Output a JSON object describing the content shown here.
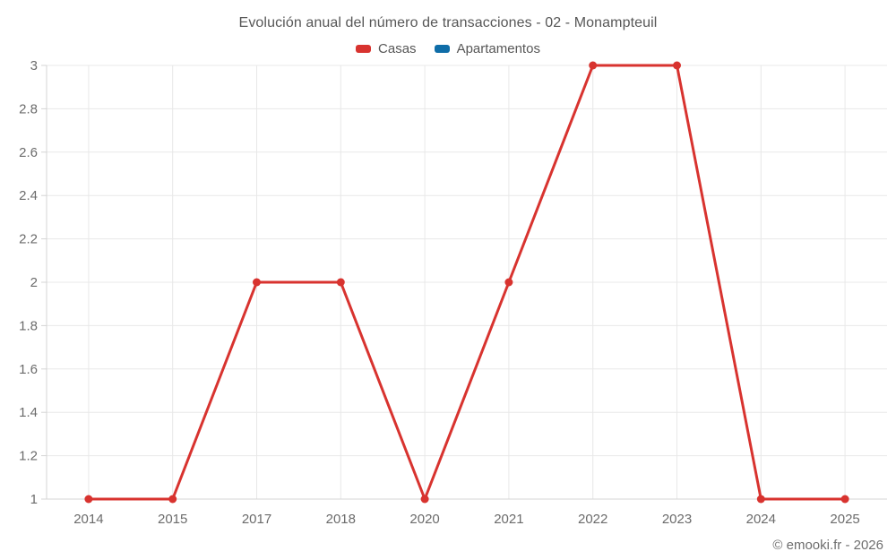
{
  "header": {
    "title": "Evolución anual del número de transacciones - 02 - Monampteuil"
  },
  "legend": {
    "items": [
      {
        "label": "Casas",
        "color": "#d8332f"
      },
      {
        "label": "Apartamentos",
        "color": "#0f6da8"
      }
    ]
  },
  "footer": {
    "copyright": "© emooki.fr - 2026"
  },
  "chart_data": {
    "type": "line",
    "title": "Evolución anual del número de transacciones - 02 - Monampteuil",
    "categories": [
      "2014",
      "2015",
      "2017",
      "2018",
      "2020",
      "2021",
      "2022",
      "2023",
      "2024",
      "2025"
    ],
    "series": [
      {
        "name": "Casas",
        "color": "#d8332f",
        "values": [
          1,
          1,
          2,
          2,
          1,
          2,
          3,
          3,
          1,
          1
        ]
      },
      {
        "name": "Apartamentos",
        "color": "#0f6da8",
        "values": []
      }
    ],
    "xlabel": "",
    "ylabel": "",
    "ylim": [
      1,
      3
    ],
    "ytick_step": 0.2,
    "grid": true,
    "legend_position": "top"
  }
}
